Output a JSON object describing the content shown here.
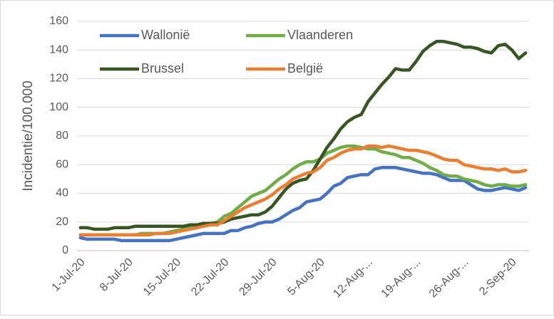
{
  "chart_data": {
    "type": "line",
    "y_label": "Incidentie/100.000",
    "categories": [
      "1-Jul-20",
      null,
      null,
      null,
      null,
      null,
      null,
      "8-Jul-20",
      null,
      null,
      null,
      null,
      null,
      null,
      "15-Jul-20",
      null,
      null,
      null,
      null,
      null,
      null,
      "22-Jul-20",
      null,
      null,
      null,
      null,
      null,
      null,
      "29-Jul-20",
      null,
      null,
      null,
      null,
      null,
      null,
      "5-Aug-20",
      null,
      null,
      null,
      null,
      null,
      null,
      "12-Aug-...",
      null,
      null,
      null,
      null,
      null,
      null,
      "19-Aug-...",
      null,
      null,
      null,
      null,
      null,
      null,
      "26-Aug-...",
      null,
      null,
      null,
      null,
      null,
      null,
      "2-Sep-20",
      null,
      null
    ],
    "series": [
      {
        "name": "Wallonië",
        "color": "#4472c4",
        "values": [
          9,
          8,
          8,
          8,
          8,
          8,
          7,
          7,
          7,
          7,
          7,
          7,
          7,
          7,
          8,
          9,
          10,
          11,
          12,
          12,
          12,
          12,
          14,
          14,
          16,
          17,
          19,
          20,
          20,
          22,
          25,
          28,
          30,
          34,
          35,
          36,
          40,
          45,
          47,
          51,
          52,
          53,
          53,
          57,
          58,
          58,
          58,
          57,
          56,
          55,
          54,
          54,
          53,
          51,
          49,
          49,
          49,
          46,
          43,
          42,
          42,
          43,
          44,
          43,
          42,
          44
        ]
      },
      {
        "name": "Vlaanderen",
        "color": "#70ad47",
        "values": [
          11,
          11,
          11,
          11,
          11,
          11,
          11,
          11,
          11,
          12,
          12,
          12,
          12,
          13,
          14,
          15,
          16,
          17,
          18,
          19,
          20,
          24,
          26,
          30,
          34,
          38,
          40,
          42,
          46,
          50,
          53,
          57,
          60,
          62,
          62,
          64,
          68,
          70,
          72,
          73,
          73,
          72,
          71,
          71,
          69,
          68,
          67,
          65,
          65,
          63,
          61,
          58,
          56,
          53,
          52,
          52,
          50,
          49,
          48,
          46,
          45,
          46,
          46,
          45,
          45,
          46
        ]
      },
      {
        "name": "Brussel",
        "color": "#375623",
        "values": [
          16,
          16,
          15,
          15,
          15,
          16,
          16,
          16,
          17,
          17,
          17,
          17,
          17,
          17,
          17,
          17,
          18,
          18,
          19,
          19,
          19,
          20,
          22,
          23,
          24,
          25,
          25,
          27,
          31,
          37,
          43,
          47,
          49,
          50,
          56,
          64,
          72,
          78,
          85,
          90,
          93,
          95,
          104,
          110,
          116,
          121,
          127,
          126,
          126,
          132,
          139,
          143,
          146,
          146,
          145,
          144,
          142,
          142,
          141,
          139,
          138,
          143,
          144,
          140,
          134,
          138
        ]
      },
      {
        "name": "België",
        "color": "#ed7d31",
        "values": [
          11,
          11,
          11,
          11,
          11,
          11,
          11,
          11,
          11,
          11,
          11,
          12,
          12,
          12,
          13,
          14,
          15,
          16,
          17,
          18,
          18,
          21,
          24,
          27,
          30,
          32,
          34,
          36,
          39,
          43,
          46,
          50,
          52,
          54,
          55,
          58,
          63,
          65,
          68,
          70,
          71,
          71,
          73,
          73,
          72,
          73,
          72,
          71,
          70,
          70,
          69,
          68,
          66,
          64,
          63,
          63,
          60,
          59,
          58,
          57,
          57,
          56,
          57,
          55,
          55,
          56
        ]
      }
    ],
    "ylim": [
      0,
      160
    ],
    "yticks": [
      0,
      20,
      40,
      60,
      80,
      100,
      120,
      140,
      160
    ],
    "grid": true
  }
}
